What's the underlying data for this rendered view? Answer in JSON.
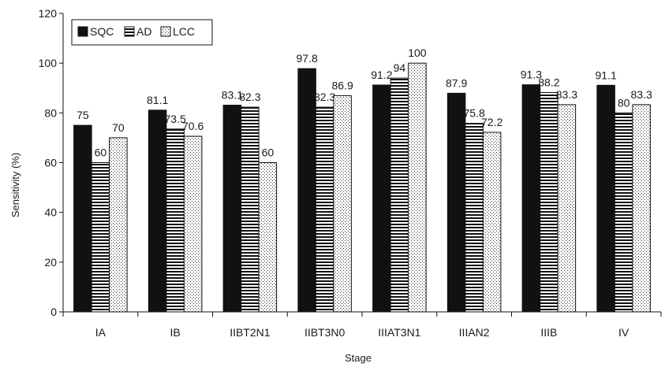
{
  "chart_data": {
    "type": "bar",
    "title": "",
    "xlabel": "Stage",
    "ylabel": "Sensitivity (%)",
    "ylim": [
      0,
      120
    ],
    "yticks": [
      0,
      20,
      40,
      60,
      80,
      100,
      120
    ],
    "grid": false,
    "legend": "top-left",
    "categories": [
      "IA",
      "IB",
      "IIBT2N1",
      "IIBT3N0",
      "IIIAT3N1",
      "IIIAN2",
      "IIIB",
      "IV"
    ],
    "series": [
      {
        "name": "SQC",
        "pattern": "solid",
        "values": [
          75,
          81.1,
          83.1,
          97.8,
          91.2,
          87.9,
          91.3,
          91.1
        ],
        "labels": [
          "75",
          "81.1",
          "83.1",
          "97.8",
          "91.2",
          "87.9",
          "91.3",
          "91.1"
        ]
      },
      {
        "name": "AD",
        "pattern": "horizontal-stripes",
        "values": [
          60,
          73.5,
          82.3,
          82.3,
          94,
          75.8,
          88.2,
          80
        ],
        "labels": [
          "60",
          "73.5",
          "82.3",
          "82.3",
          "94",
          "75.8",
          "88.2",
          "80"
        ]
      },
      {
        "name": "LCC",
        "pattern": "dots",
        "values": [
          70,
          70.6,
          60,
          86.9,
          100,
          72.2,
          83.3,
          83.3
        ],
        "labels": [
          "70",
          "70.6",
          "60",
          "86.9",
          "100",
          "72.2",
          "83.3",
          "83.3"
        ]
      }
    ],
    "colors": {
      "bar_fill": "#111111",
      "stroke": "#111111",
      "background": "#ffffff"
    }
  }
}
